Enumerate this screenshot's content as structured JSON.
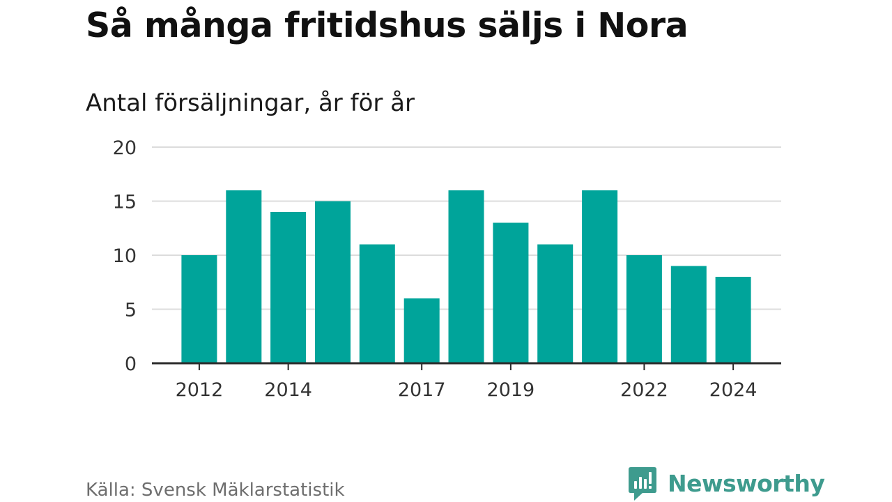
{
  "chart_data": {
    "type": "bar",
    "title": "Så många fritidshus säljs i Nora",
    "subtitle": "Antal försäljningar, år för år",
    "categories": [
      "2012",
      "2013",
      "2014",
      "2015",
      "2016",
      "2017",
      "2018",
      "2019",
      "2020",
      "2021",
      "2022",
      "2023",
      "2024"
    ],
    "values": [
      10,
      16,
      14,
      15,
      11,
      6,
      16,
      13,
      11,
      16,
      10,
      9,
      8
    ],
    "x_tick_labels": [
      "2012",
      "2014",
      "2017",
      "2019",
      "2022",
      "2024"
    ],
    "y_ticks": [
      0,
      5,
      10,
      15,
      20
    ],
    "ylim": [
      0,
      20
    ],
    "xlabel": "",
    "ylabel": "",
    "grid": true,
    "bar_color": "#00a49a"
  },
  "source": "Källa: Svensk Mäklarstatistik",
  "brand": {
    "name": "Newsworthy",
    "icon": "newsworthy-logo-icon",
    "color": "#3e9b8e"
  }
}
